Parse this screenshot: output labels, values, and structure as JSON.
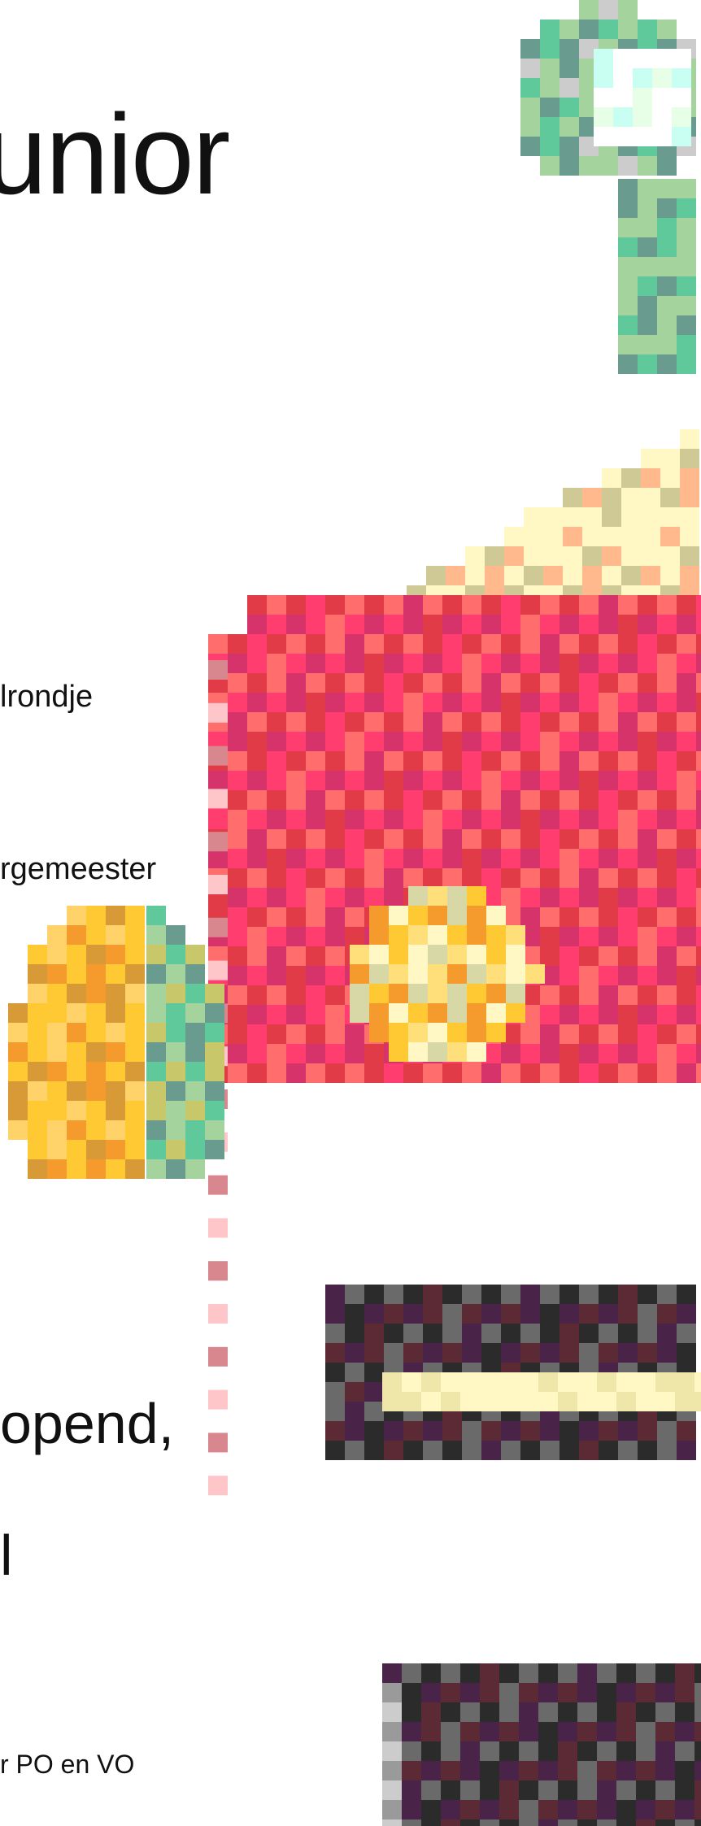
{
  "title": "unior",
  "labels": {
    "round": "lrondje",
    "mayor": "rgemeester",
    "line1": "opend,",
    "line2": "l",
    "footer": "r PO en VO"
  },
  "palette": {
    "green_light": "#a4d39d",
    "green_dark": "#6a9b8f",
    "green_teal": "#5fc99c",
    "grey": "#cccccc",
    "cream": "#fff8c4",
    "olive": "#cfc996",
    "peach": "#ffb98d",
    "pink_light": "#ffc6ca",
    "red": "#e23b48",
    "magenta": "#d6336a",
    "salmon": "#ff6d6d",
    "yellow": "#ffc933",
    "orange": "#f59a2c",
    "gold": "#d79a36",
    "purple_dark": "#4a2348",
    "dark": "#2b2b2b",
    "mid_grey": "#6a6a6a"
  }
}
